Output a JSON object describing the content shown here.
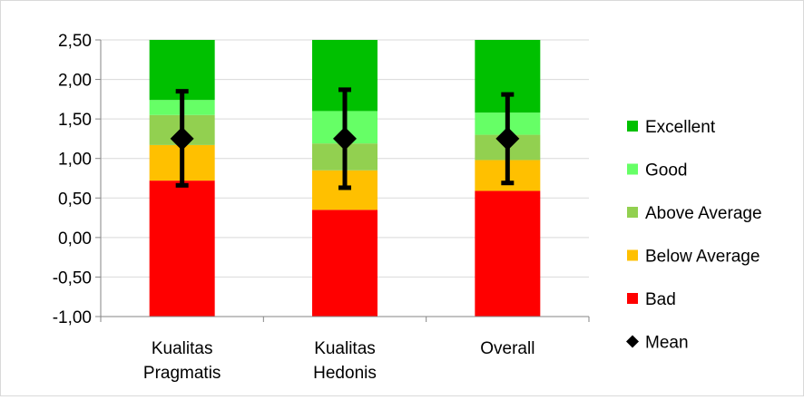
{
  "chart_data": {
    "type": "bar",
    "stacked": true,
    "categories": [
      [
        "Kualitas",
        "Pragmatis"
      ],
      [
        "Kualitas",
        "Hedonis"
      ],
      [
        "Overall"
      ]
    ],
    "ylim": [
      -1.0,
      2.5
    ],
    "yticks": [
      "-1,00",
      "-0,50",
      "0,00",
      "0,50",
      "1,00",
      "1,50",
      "2,00",
      "2,50"
    ],
    "ytick_values": [
      -1.0,
      -0.5,
      0.0,
      0.5,
      1.0,
      1.5,
      2.0,
      2.5
    ],
    "grid": true,
    "legend_position": "right",
    "bands": [
      {
        "name": "Bad",
        "color": "#ff0000",
        "upper": [
          0.72,
          0.35,
          0.59
        ]
      },
      {
        "name": "Below Average",
        "color": "#ffc000",
        "upper": [
          1.17,
          0.85,
          0.98
        ]
      },
      {
        "name": "Above Average",
        "color": "#92d050",
        "upper": [
          1.55,
          1.19,
          1.3
        ]
      },
      {
        "name": "Good",
        "color": "#66ff66",
        "upper": [
          1.74,
          1.6,
          1.58
        ]
      },
      {
        "name": "Excellent",
        "color": "#00c000",
        "upper": [
          2.5,
          2.5,
          2.5
        ]
      }
    ],
    "mean": {
      "name": "Mean",
      "values": [
        1.25,
        1.25,
        1.25
      ],
      "error_low": [
        0.66,
        0.63,
        0.69
      ],
      "error_high": [
        1.85,
        1.87,
        1.81
      ]
    },
    "legend": [
      "Excellent",
      "Good",
      "Above Average",
      "Below Average",
      "Bad",
      "Mean"
    ]
  }
}
